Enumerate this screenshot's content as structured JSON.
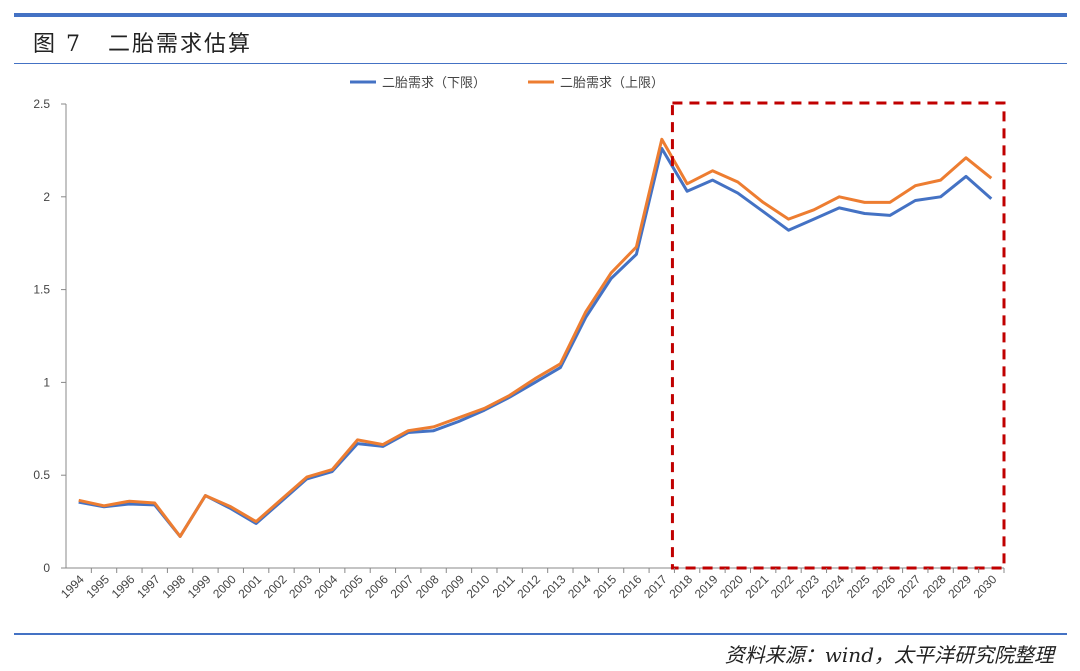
{
  "header": {
    "figure_number": "图 7",
    "title": "二胎需求估算"
  },
  "footer": {
    "source": "资料来源：wind，太平洋研究院整理"
  },
  "colors": {
    "rule_blue": "#4472c4",
    "series_lower": "#4472c4",
    "series_upper": "#ed7d31",
    "highlight_box": "#c00000"
  },
  "chart_data": {
    "type": "line",
    "title": "",
    "xlabel": "",
    "ylabel": "",
    "ylim": [
      0,
      2.5
    ],
    "yticks": [
      "0",
      "0.5",
      "1",
      "1.5",
      "2",
      "2.5"
    ],
    "legend_position": "top",
    "grid": false,
    "x": [
      "1994",
      "1995",
      "1996",
      "1997",
      "1998",
      "1999",
      "2000",
      "2001",
      "2002",
      "2003",
      "2004",
      "2005",
      "2006",
      "2007",
      "2008",
      "2009",
      "2010",
      "2011",
      "2012",
      "2013",
      "2014",
      "2015",
      "2016",
      "2017",
      "2018",
      "2019",
      "2020",
      "2021",
      "2022",
      "2023",
      "2024",
      "2025",
      "2026",
      "2027",
      "2028",
      "2029",
      "2030"
    ],
    "series": [
      {
        "name": "二胎需求（下限）",
        "color": "#4472c4",
        "values": [
          0.355,
          0.33,
          0.345,
          0.34,
          0.17,
          0.39,
          0.32,
          0.24,
          0.36,
          0.48,
          0.52,
          0.67,
          0.655,
          0.73,
          0.74,
          0.79,
          0.85,
          0.92,
          1.0,
          1.08,
          1.35,
          1.56,
          1.69,
          2.26,
          2.03,
          2.09,
          2.02,
          1.92,
          1.82,
          1.88,
          1.94,
          1.91,
          1.9,
          1.98,
          2.0,
          2.11,
          1.99
        ]
      },
      {
        "name": "二胎需求（上限）",
        "color": "#ed7d31",
        "values": [
          0.365,
          0.335,
          0.36,
          0.35,
          0.17,
          0.39,
          0.33,
          0.25,
          0.37,
          0.49,
          0.53,
          0.69,
          0.665,
          0.74,
          0.76,
          0.81,
          0.86,
          0.93,
          1.02,
          1.1,
          1.38,
          1.59,
          1.73,
          2.31,
          2.07,
          2.14,
          2.08,
          1.97,
          1.88,
          1.93,
          2.0,
          1.97,
          1.97,
          2.06,
          2.09,
          2.21,
          2.1
        ]
      }
    ],
    "highlight_range": [
      "2018",
      "2030"
    ]
  }
}
